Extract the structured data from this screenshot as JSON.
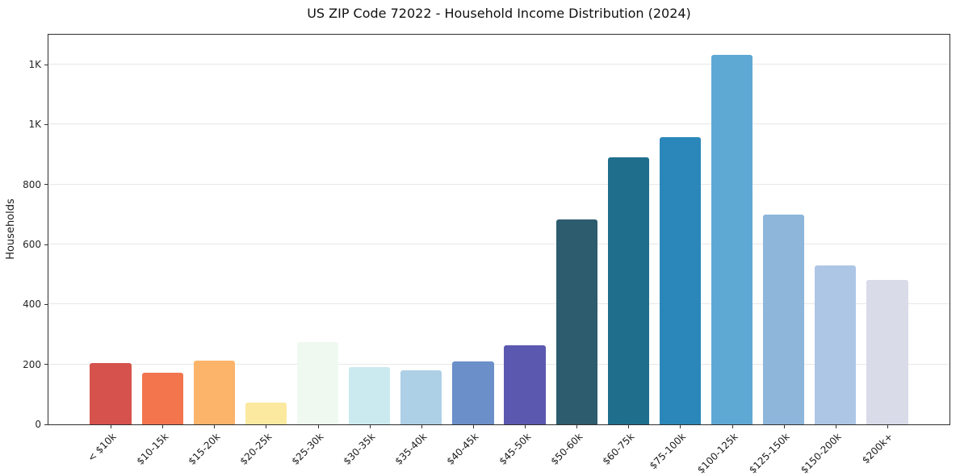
{
  "chart_data": {
    "type": "bar",
    "title": "US ZIP Code 72022 - Household Income Distribution (2024)",
    "xlabel": "",
    "ylabel": "Households",
    "categories": [
      "< $10k",
      "$10-15k",
      "$15-20k",
      "$20-25k",
      "$25-30k",
      "$30-35k",
      "$35-40k",
      "$40-45k",
      "$45-50k",
      "$50-60k",
      "$60-75k",
      "$75-100k",
      "$100-125k",
      "$125-150k",
      "$150-200k",
      "$200k+"
    ],
    "values": [
      205,
      173,
      212,
      73,
      275,
      191,
      181,
      210,
      264,
      684,
      892,
      957,
      1232,
      700,
      530,
      483
    ],
    "bar_colors": [
      "#d6524c",
      "#f2754e",
      "#fcb46a",
      "#fce9a0",
      "#eff9f0",
      "#cbeaf0",
      "#aed0e6",
      "#6b8fc9",
      "#5b58b0",
      "#2d5c6e",
      "#1f6f8c",
      "#2b87ba",
      "#5ea9d4",
      "#8db6da",
      "#aec6e6",
      "#d9dbe9"
    ],
    "ylim": [
      0,
      1300
    ],
    "yticks": [
      {
        "value": 0,
        "label": "0"
      },
      {
        "value": 200,
        "label": "200"
      },
      {
        "value": 400,
        "label": "400"
      },
      {
        "value": 600,
        "label": "600"
      },
      {
        "value": 800,
        "label": "800"
      },
      {
        "value": 1000,
        "label": "1K"
      },
      {
        "value": 1200,
        "label": "1K"
      }
    ],
    "grid": true,
    "legend": "none",
    "background_color": "#ffffff",
    "plot_background_color": "#ffffff"
  }
}
